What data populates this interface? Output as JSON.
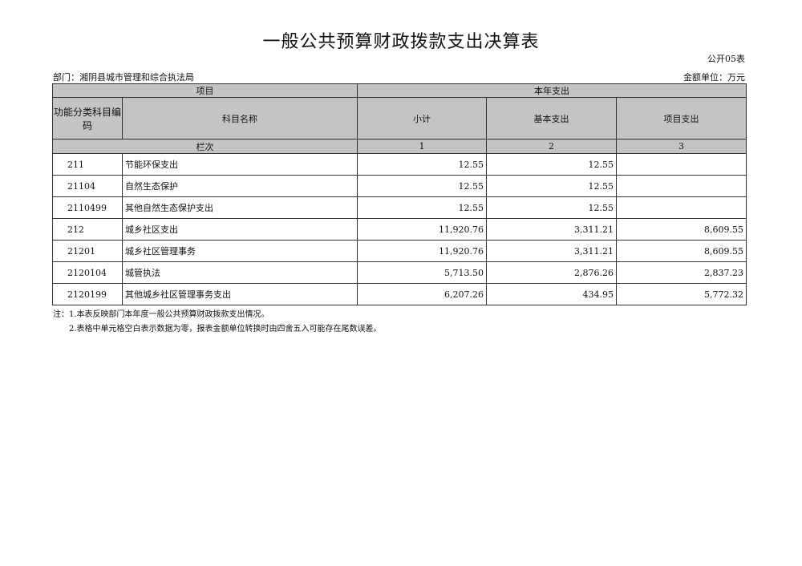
{
  "title": "一般公共预算财政拨款支出决算表",
  "table_code": "公开05表",
  "department": "部门：湘阴县城市管理和综合执法局",
  "unit": "金额单位：万元",
  "headers": {
    "project": "项目",
    "current_year": "本年支出",
    "code": "功能分类科目编码",
    "name": "科目名称",
    "subtotal": "小计",
    "basic": "基本支出",
    "project_exp": "项目支出",
    "column_index": "栏次",
    "c1": "1",
    "c2": "2",
    "c3": "3"
  },
  "rows": [
    {
      "code": "211",
      "name": "节能环保支出",
      "subtotal": "12.55",
      "basic": "12.55",
      "project": ""
    },
    {
      "code": "21104",
      "name": "自然生态保护",
      "subtotal": "12.55",
      "basic": "12.55",
      "project": ""
    },
    {
      "code": "2110499",
      "name": "其他自然生态保护支出",
      "subtotal": "12.55",
      "basic": "12.55",
      "project": ""
    },
    {
      "code": "212",
      "name": "城乡社区支出",
      "subtotal": "11,920.76",
      "basic": "3,311.21",
      "project": "8,609.55"
    },
    {
      "code": "21201",
      "name": "城乡社区管理事务",
      "subtotal": "11,920.76",
      "basic": "3,311.21",
      "project": "8,609.55"
    },
    {
      "code": "2120104",
      "name": "城管执法",
      "subtotal": "5,713.50",
      "basic": "2,876.26",
      "project": "2,837.23"
    },
    {
      "code": "2120199",
      "name": "其他城乡社区管理事务支出",
      "subtotal": "6,207.26",
      "basic": "434.95",
      "project": "5,772.32"
    }
  ],
  "notes": [
    "注：1.本表反映部门本年度一般公共预算财政拨款支出情况。",
    "2.表格中单元格空白表示数据为零，报表金额单位转换时由四舍五入可能存在尾数误差。"
  ]
}
